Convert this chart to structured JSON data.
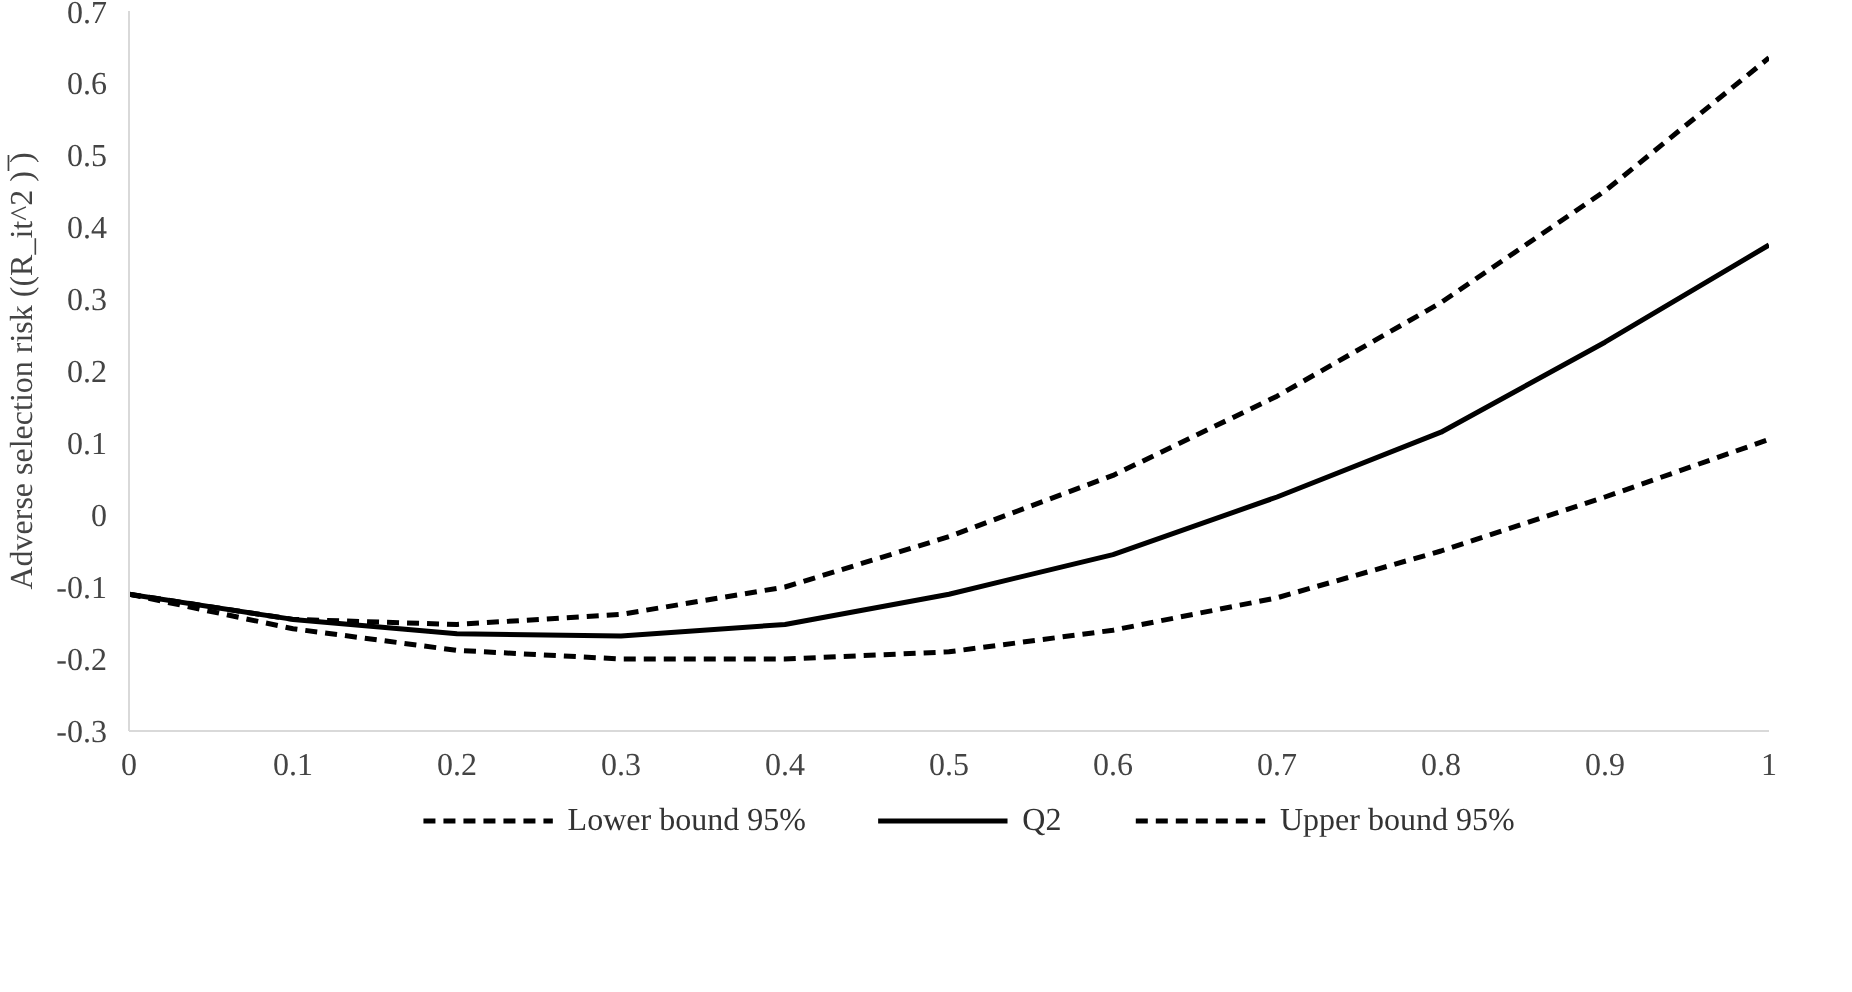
{
  "chart_data": {
    "type": "line",
    "ylabel": "Adverse selection risk ((R_it^2 ) ̅)",
    "x": [
      0,
      0.1,
      0.2,
      0.3,
      0.4,
      0.5,
      0.6,
      0.7,
      0.8,
      0.9,
      1
    ],
    "series": [
      {
        "name": "Lower bound 95%",
        "color": "#000000",
        "line_style": "dashed",
        "values": [
          -0.11,
          -0.158,
          -0.188,
          -0.2,
          -0.2,
          -0.19,
          -0.16,
          -0.115,
          -0.05,
          0.025,
          0.105
        ]
      },
      {
        "name": "Q2",
        "color": "#000000",
        "line_style": "solid",
        "values": [
          -0.11,
          -0.145,
          -0.165,
          -0.168,
          -0.152,
          -0.11,
          -0.055,
          0.025,
          0.115,
          0.24,
          0.375
        ]
      },
      {
        "name": "Upper bound 95%",
        "color": "#000000",
        "line_style": "dashed",
        "values": [
          -0.11,
          -0.145,
          -0.152,
          -0.138,
          -0.1,
          -0.03,
          0.055,
          0.165,
          0.295,
          0.45,
          0.635
        ]
      }
    ],
    "xlim": [
      0,
      1
    ],
    "xticks": [
      0,
      0.1,
      0.2,
      0.3,
      0.4,
      0.5,
      0.6,
      0.7,
      0.8,
      0.9,
      1
    ],
    "ylim": [
      -0.3,
      0.7
    ],
    "yticks": [
      -0.3,
      -0.2,
      -0.1,
      0,
      0.1,
      0.2,
      0.3,
      0.4,
      0.5,
      0.6,
      0.7
    ],
    "grid": false,
    "legend": "bottom",
    "marker": "none"
  }
}
